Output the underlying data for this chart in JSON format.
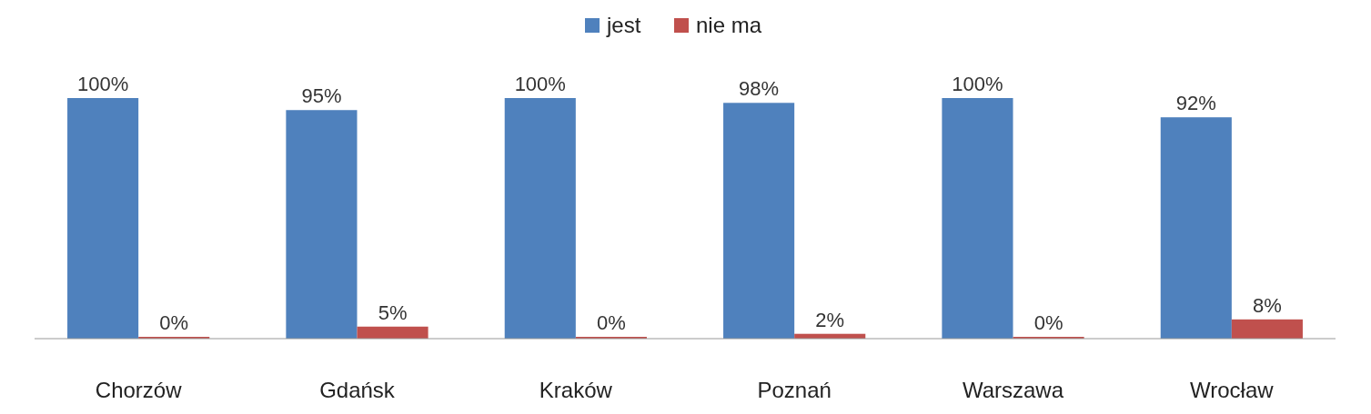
{
  "chart_data": {
    "type": "bar",
    "categories": [
      "Chorzów",
      "Gdańsk",
      "Kraków",
      "Poznań",
      "Warszawa",
      "Wrocław"
    ],
    "legend": "top",
    "series": [
      {
        "name": "jest",
        "color": "#4f81bd",
        "values": [
          100,
          95,
          100,
          98,
          100,
          92
        ],
        "value_labels": [
          "100%",
          "95%",
          "100%",
          "98%",
          "100%",
          "92%"
        ]
      },
      {
        "name": "nie ma",
        "color": "#c0504d",
        "values": [
          0,
          5,
          0,
          2,
          0,
          8
        ],
        "value_labels": [
          "0%",
          "5%",
          "0%",
          "2%",
          "0%",
          "8%"
        ]
      }
    ]
  }
}
